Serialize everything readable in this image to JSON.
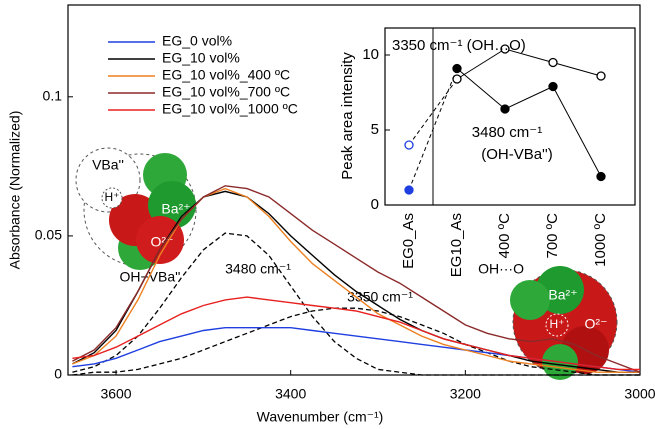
{
  "chart_data": [
    {
      "type": "line",
      "x_label": "Wavenumber (cm⁻¹)",
      "y_label": "Absorbance (Normalized)",
      "xlim": [
        3655,
        3000
      ],
      "ylim": [
        0,
        0.133
      ],
      "xticks": [
        3600,
        3400,
        3200,
        3000
      ],
      "yticks": [
        0,
        0.05,
        0.1
      ],
      "x": [
        3650,
        3625,
        3600,
        3575,
        3550,
        3525,
        3500,
        3475,
        3450,
        3425,
        3400,
        3375,
        3350,
        3325,
        3300,
        3275,
        3250,
        3225,
        3200,
        3175,
        3150,
        3125,
        3100,
        3075,
        3050,
        3025,
        3000
      ],
      "series": [
        {
          "name": "EG_0 vol%",
          "color": "#1f3fe0",
          "values": [
            0.003,
            0.004,
            0.006,
            0.009,
            0.012,
            0.014,
            0.016,
            0.017,
            0.017,
            0.017,
            0.017,
            0.016,
            0.015,
            0.014,
            0.013,
            0.012,
            0.011,
            0.01,
            0.009,
            0.008,
            0.007,
            0.006,
            0.005,
            0.004,
            0.003,
            0.002,
            0.001
          ]
        },
        {
          "name": "EG_10 vol%",
          "color": "#000000",
          "values": [
            0.004,
            0.008,
            0.016,
            0.03,
            0.045,
            0.057,
            0.064,
            0.066,
            0.064,
            0.058,
            0.05,
            0.043,
            0.036,
            0.03,
            0.025,
            0.02,
            0.016,
            0.013,
            0.011,
            0.009,
            0.007,
            0.005,
            0.004,
            0.003,
            0.002,
            0.001,
            0.001
          ]
        },
        {
          "name": "EG_10 vol%_400 ºC",
          "color": "#ee8020",
          "values": [
            0.004,
            0.007,
            0.014,
            0.027,
            0.043,
            0.056,
            0.064,
            0.067,
            0.064,
            0.057,
            0.048,
            0.04,
            0.034,
            0.028,
            0.022,
            0.018,
            0.014,
            0.011,
            0.009,
            0.007,
            0.005,
            0.004,
            0.003,
            0.002,
            0.001,
            0.001,
            0.001
          ]
        },
        {
          "name": "EG_10 vol%_700 ºC",
          "color": "#8b2a2a",
          "values": [
            0.005,
            0.009,
            0.017,
            0.03,
            0.045,
            0.056,
            0.064,
            0.068,
            0.067,
            0.064,
            0.058,
            0.052,
            0.047,
            0.042,
            0.037,
            0.033,
            0.028,
            0.023,
            0.018,
            0.015,
            0.013,
            0.012,
            0.013,
            0.011,
            0.007,
            0.004,
            0.001
          ]
        },
        {
          "name": "EG_10 vol%_1000 ºC",
          "color": "#e82020",
          "values": [
            0.006,
            0.007,
            0.01,
            0.014,
            0.018,
            0.022,
            0.025,
            0.027,
            0.028,
            0.027,
            0.026,
            0.025,
            0.024,
            0.023,
            0.021,
            0.019,
            0.016,
            0.013,
            0.011,
            0.009,
            0.007,
            0.006,
            0.005,
            0.004,
            0.003,
            0.002,
            0.002
          ]
        }
      ],
      "fits": [
        {
          "label": "3480 cm⁻¹",
          "values": [
            0.001,
            0.003,
            0.007,
            0.014,
            0.024,
            0.035,
            0.045,
            0.051,
            0.05,
            0.043,
            0.032,
            0.021,
            0.012,
            0.006,
            0.002,
            0.001,
            0,
            0,
            0,
            0,
            0,
            0,
            0,
            0,
            0,
            0,
            0
          ]
        },
        {
          "label": "3350 cm⁻¹",
          "values": [
            0,
            0.001,
            0.001,
            0.002,
            0.004,
            0.006,
            0.009,
            0.012,
            0.015,
            0.018,
            0.021,
            0.023,
            0.024,
            0.024,
            0.023,
            0.021,
            0.018,
            0.015,
            0.011,
            0.008,
            0.005,
            0.003,
            0.002,
            0.001,
            0,
            0,
            0
          ]
        }
      ]
    },
    {
      "type": "point",
      "y_label": "Peak area intensity",
      "ylim": [
        0,
        11.8
      ],
      "yticks": [
        0,
        5,
        10
      ],
      "categories": [
        "EG0_As",
        "EG10_As",
        "400 ºC",
        "700 ºC",
        "1000 ºC"
      ],
      "category_colors": [
        "#1f3fe0",
        "#000000",
        "#ee8020",
        "#8b2a2a",
        "#e82020"
      ],
      "series": [
        {
          "marker": "open",
          "values": [
            4.0,
            8.4,
            10.4,
            9.5,
            8.6
          ]
        },
        {
          "marker": "filled",
          "values": [
            1.0,
            9.1,
            6.4,
            7.9,
            1.9
          ]
        }
      ],
      "annotations": [
        "3350 cm⁻¹ (OH…O)",
        "3480 cm⁻¹",
        "(OH-VBa'')"
      ]
    }
  ],
  "illustrations": {
    "left": [
      "VBa''",
      "H⁺",
      "Ba²⁺",
      "O²⁻",
      "OH−VBa''"
    ],
    "right": [
      "OH···O",
      "Ba²⁺",
      "H⁺",
      "O²⁻"
    ]
  }
}
